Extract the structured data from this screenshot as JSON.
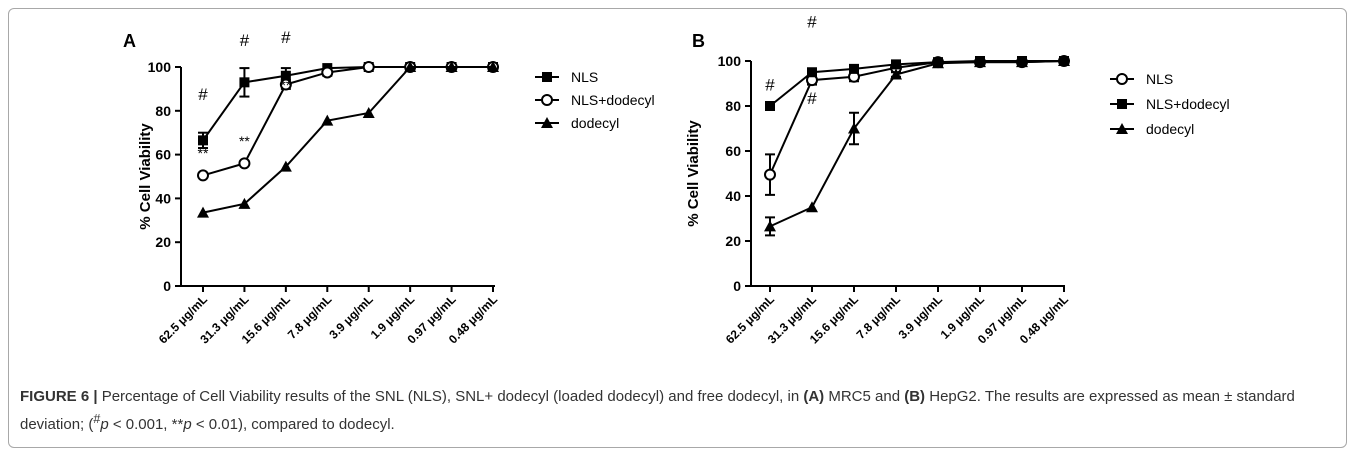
{
  "chart_data": [
    {
      "panel_label": "A",
      "type": "line",
      "ylabel": "% Cell Viability",
      "ylim": [
        0,
        100
      ],
      "yticks": [
        0,
        20,
        40,
        60,
        80,
        100
      ],
      "categories": [
        "62.5 μg/mL",
        "31.3 μg/mL",
        "15.6 μg/mL",
        "7.8 μg/mL",
        "3.9 μg/mL",
        "1.9 μg/mL",
        "0.97 μg/mL",
        "0.48 μg/mL"
      ],
      "legend_position": "right",
      "series": [
        {
          "name": "NLS",
          "marker": "square",
          "values": [
            66.5,
            93,
            96,
            99.5,
            100,
            100,
            100,
            100
          ],
          "errors": [
            3.5,
            6.5,
            3.5,
            0,
            0,
            0,
            0,
            0
          ]
        },
        {
          "name": "NLS+dodecyl",
          "marker": "circle-open",
          "values": [
            50.5,
            56,
            92,
            97.5,
            100,
            100,
            100,
            100
          ],
          "errors": [
            0,
            0,
            2,
            1.5,
            0,
            0,
            0,
            0
          ]
        },
        {
          "name": "dodecyl",
          "marker": "triangle",
          "values": [
            33.5,
            37.5,
            54.5,
            75.5,
            79,
            100,
            100,
            100
          ],
          "errors": [
            0,
            0,
            0,
            0,
            0,
            0,
            0,
            0
          ]
        }
      ],
      "annotations": [
        {
          "text": "#",
          "category": 0,
          "y": 85
        },
        {
          "text": "**",
          "category": 0,
          "y": 58.5
        },
        {
          "text": "#",
          "category": 1,
          "y": 109.5
        },
        {
          "text": "**",
          "category": 1,
          "y": 64
        },
        {
          "text": "#",
          "category": 2,
          "y": 111
        },
        {
          "text": "**",
          "category": 2,
          "y": 89.5
        }
      ]
    },
    {
      "panel_label": "B",
      "type": "line",
      "ylabel": "% Cell Viability",
      "ylim": [
        0,
        100
      ],
      "yticks": [
        0,
        20,
        40,
        60,
        80,
        100
      ],
      "categories": [
        "62.5 μg/mL",
        "31.3 μg/mL",
        "15.6 μg/mL",
        "7.8 μg/mL",
        "3.9 μg/mL",
        "1.9 μg/mL",
        "0.97 μg/mL",
        "0.48 μg/mL"
      ],
      "legend_position": "right",
      "series": [
        {
          "name": "NLS",
          "marker": "circle-open",
          "values": [
            49.5,
            91.5,
            93,
            97,
            99.5,
            99.5,
            99.5,
            100
          ],
          "errors": [
            9,
            2,
            2,
            1.5,
            0,
            0,
            0,
            0
          ]
        },
        {
          "name": "NLS+dodecyl",
          "marker": "square",
          "values": [
            80,
            95,
            96.5,
            98.5,
            99.5,
            100,
            100,
            100
          ],
          "errors": [
            0,
            1.5,
            1.5,
            1,
            0,
            0,
            0,
            0
          ]
        },
        {
          "name": "dodecyl",
          "marker": "triangle",
          "values": [
            26.5,
            35,
            70,
            94,
            99,
            99.5,
            99.5,
            100
          ],
          "errors": [
            4,
            0,
            7,
            1,
            0,
            0,
            0,
            0
          ]
        }
      ],
      "annotations": [
        {
          "text": "#",
          "category": 0,
          "y": 87
        },
        {
          "text": "#",
          "category": 1,
          "y": 115
        },
        {
          "text": "#",
          "category": 1,
          "y": 81
        }
      ]
    }
  ],
  "caption": {
    "label": "FIGURE 6 |",
    "part1": " Percentage of Cell Viability results of the SNL (NLS), SNL+ dodecyl (loaded dodecyl) and free dodecyl, in ",
    "a_label": "(A)",
    "part2": " MRC5 and ",
    "b_label": "(B)",
    "part3": " HepG2. The results are expressed as mean ± standard deviation; (",
    "sym1": "#",
    "p1": "p",
    "part4": " < 0.001, **",
    "p2": "p",
    "part5": " < 0.01), compared to dodecyl."
  }
}
